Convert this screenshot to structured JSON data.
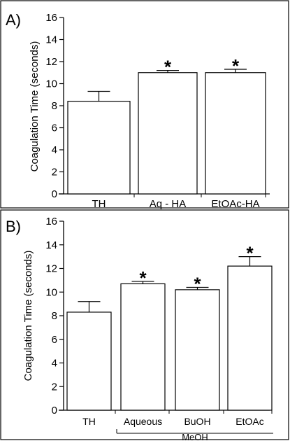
{
  "chart_data": [
    {
      "type": "bar",
      "panel_label": "A)",
      "ylabel": "Coagulation Time (seconds)",
      "ylim": [
        0,
        16
      ],
      "yticks": [
        0,
        2,
        4,
        6,
        8,
        10,
        12,
        14,
        16
      ],
      "categories": [
        "TH",
        "Aq - HA",
        "EtOAc-HA"
      ],
      "values": [
        8.4,
        11.0,
        11.0
      ],
      "errors": [
        0.9,
        0.2,
        0.3
      ],
      "significance": [
        "",
        "*",
        "*"
      ],
      "grid": false
    },
    {
      "type": "bar",
      "panel_label": "B)",
      "ylabel": "Coagulation Time (seconds)",
      "ylim": [
        0,
        16
      ],
      "yticks": [
        0,
        2,
        4,
        6,
        8,
        10,
        12,
        14,
        16
      ],
      "categories": [
        "TH",
        "Aqueous",
        "BuOH",
        "EtOAc"
      ],
      "values": [
        8.3,
        10.7,
        10.2,
        12.2
      ],
      "errors": [
        0.9,
        0.2,
        0.2,
        0.8
      ],
      "significance": [
        "",
        "*",
        "*",
        "*"
      ],
      "group_bracket": {
        "label": "MeOH",
        "from": 1,
        "to": 3
      },
      "grid": false
    }
  ]
}
